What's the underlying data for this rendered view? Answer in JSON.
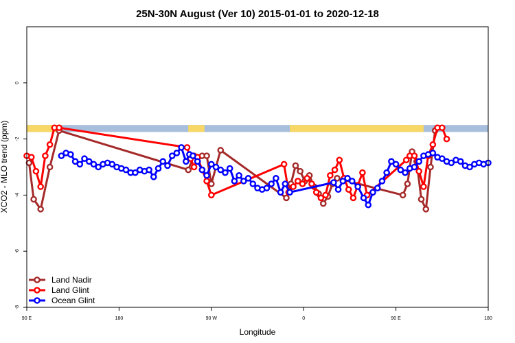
{
  "chart_data": {
    "type": "line",
    "title": "25N-30N August (Ver 10)   2015-01-01 to 2020-12-18",
    "xlabel": "Longitude",
    "ylabel": "XCO2 - MLO trend (ppm)",
    "xlim": [
      0,
      400
    ],
    "ylim": [
      -8,
      2
    ],
    "x_ticks": [
      {
        "value": 0,
        "label": "90 E"
      },
      {
        "value": 80,
        "label": "180"
      },
      {
        "value": 160,
        "label": "90 W"
      },
      {
        "value": 240,
        "label": "0"
      },
      {
        "value": 320,
        "label": "90 E"
      },
      {
        "value": 400,
        "label": "180"
      }
    ],
    "y_ticks": [
      {
        "value": 0,
        "label": "0"
      },
      {
        "value": -2,
        "label": "-2"
      },
      {
        "value": -4,
        "label": "-4"
      },
      {
        "value": -6,
        "label": "-6"
      },
      {
        "value": -8,
        "label": "-8"
      }
    ],
    "legend_position": "bottom-left",
    "land_ocean_band": {
      "y_range": [
        -1.75,
        -1.5
      ],
      "ocean_color": "#a7bedc",
      "land_color": "#f7d766",
      "land_segments": [
        [
          0,
          30
        ],
        [
          140,
          154
        ],
        [
          228,
          344
        ],
        [
          324,
          330
        ]
      ]
    },
    "series": [
      {
        "name": "Land Nadir",
        "color": "#a52a2a",
        "x": [
          2,
          6,
          12,
          20,
          28,
          140,
          145,
          148,
          152,
          156,
          160,
          168,
          225,
          229,
          233,
          237,
          241,
          245,
          249,
          253,
          257,
          261,
          265,
          269,
          326,
          330,
          334,
          338,
          342,
          346,
          350,
          354
        ],
        "y": [
          -2.85,
          -4.15,
          -4.5,
          -3.0,
          -1.7,
          -3.1,
          -2.6,
          -2.8,
          -2.6,
          -2.6,
          -3.6,
          -2.4,
          -4.1,
          -3.6,
          -2.95,
          -3.15,
          -3.5,
          -3.3,
          -3.7,
          -3.95,
          -4.3,
          -4.05,
          -3.6,
          -3.4,
          -4.0,
          -3.6,
          -2.45,
          -2.8,
          -4.15,
          -4.5,
          -3.0,
          -1.7
        ]
      },
      {
        "name": "Land Glint",
        "color": "#ff0000",
        "x": [
          0,
          4,
          8,
          12,
          16,
          20,
          24,
          28,
          139,
          142,
          145,
          148,
          152,
          156,
          160,
          223,
          227,
          231,
          235,
          239,
          243,
          247,
          251,
          255,
          259,
          263,
          267,
          271,
          275,
          279,
          283,
          287,
          291,
          295,
          329,
          332,
          336,
          340,
          344,
          348,
          352,
          356,
          360,
          364
        ],
        "y": [
          -2.6,
          -2.65,
          -3.15,
          -3.7,
          -2.6,
          -2.2,
          -1.6,
          -1.6,
          -2.3,
          -2.7,
          -3.0,
          -2.65,
          -3.1,
          -3.5,
          -4.0,
          -2.9,
          -3.9,
          -3.7,
          -3.5,
          -3.6,
          -3.4,
          -3.6,
          -3.9,
          -4.1,
          -4.0,
          -3.3,
          -3.1,
          -2.75,
          -3.4,
          -3.8,
          -4.1,
          -3.65,
          -3.2,
          -4.0,
          -2.75,
          -2.6,
          -2.6,
          -3.15,
          -3.7,
          -2.6,
          -2.2,
          -1.6,
          -1.6,
          -2.0
        ]
      },
      {
        "name": "Ocean Glint",
        "color": "#0000ff",
        "x": [
          30,
          34,
          38,
          42,
          46,
          50,
          54,
          58,
          62,
          66,
          70,
          74,
          78,
          82,
          86,
          90,
          94,
          98,
          102,
          106,
          110,
          114,
          118,
          122,
          126,
          130,
          134,
          138,
          141,
          144,
          148,
          152,
          156,
          160,
          164,
          168,
          172,
          176,
          180,
          184,
          188,
          192,
          196,
          200,
          204,
          208,
          212,
          216,
          220,
          224,
          228,
          266,
          270,
          274,
          278,
          282,
          287,
          292,
          296,
          300,
          304,
          308,
          312,
          316,
          320,
          324,
          328,
          332,
          336,
          340,
          344,
          348,
          352,
          356,
          360,
          364,
          368,
          372,
          376,
          380,
          384,
          388,
          392,
          396,
          400
        ],
        "y": [
          -2.6,
          -2.5,
          -2.55,
          -2.8,
          -2.9,
          -2.7,
          -2.8,
          -2.9,
          -3.0,
          -2.9,
          -2.85,
          -2.9,
          -3.0,
          -3.05,
          -3.1,
          -3.2,
          -3.2,
          -3.1,
          -3.15,
          -3.1,
          -3.35,
          -3.05,
          -2.8,
          -2.95,
          -2.6,
          -2.5,
          -2.3,
          -2.8,
          -2.55,
          -2.6,
          -2.8,
          -3.1,
          -3.3,
          -2.9,
          -3.0,
          -3.1,
          -3.2,
          -3.05,
          -3.5,
          -3.3,
          -3.5,
          -3.4,
          -3.6,
          -3.75,
          -3.8,
          -3.75,
          -3.6,
          -3.4,
          -3.9,
          -3.6,
          -3.9,
          -3.55,
          -3.8,
          -3.5,
          -3.4,
          -3.5,
          -3.7,
          -4.1,
          -4.35,
          -3.9,
          -3.75,
          -3.5,
          -3.2,
          -2.8,
          -2.9,
          -3.1,
          -3.2,
          -3.05,
          -3.0,
          -2.8,
          -2.6,
          -2.55,
          -2.5,
          -2.65,
          -2.7,
          -2.8,
          -2.85,
          -2.75,
          -2.8,
          -2.95,
          -3.0,
          -2.9,
          -2.85,
          -2.9,
          -2.85
        ]
      }
    ]
  }
}
